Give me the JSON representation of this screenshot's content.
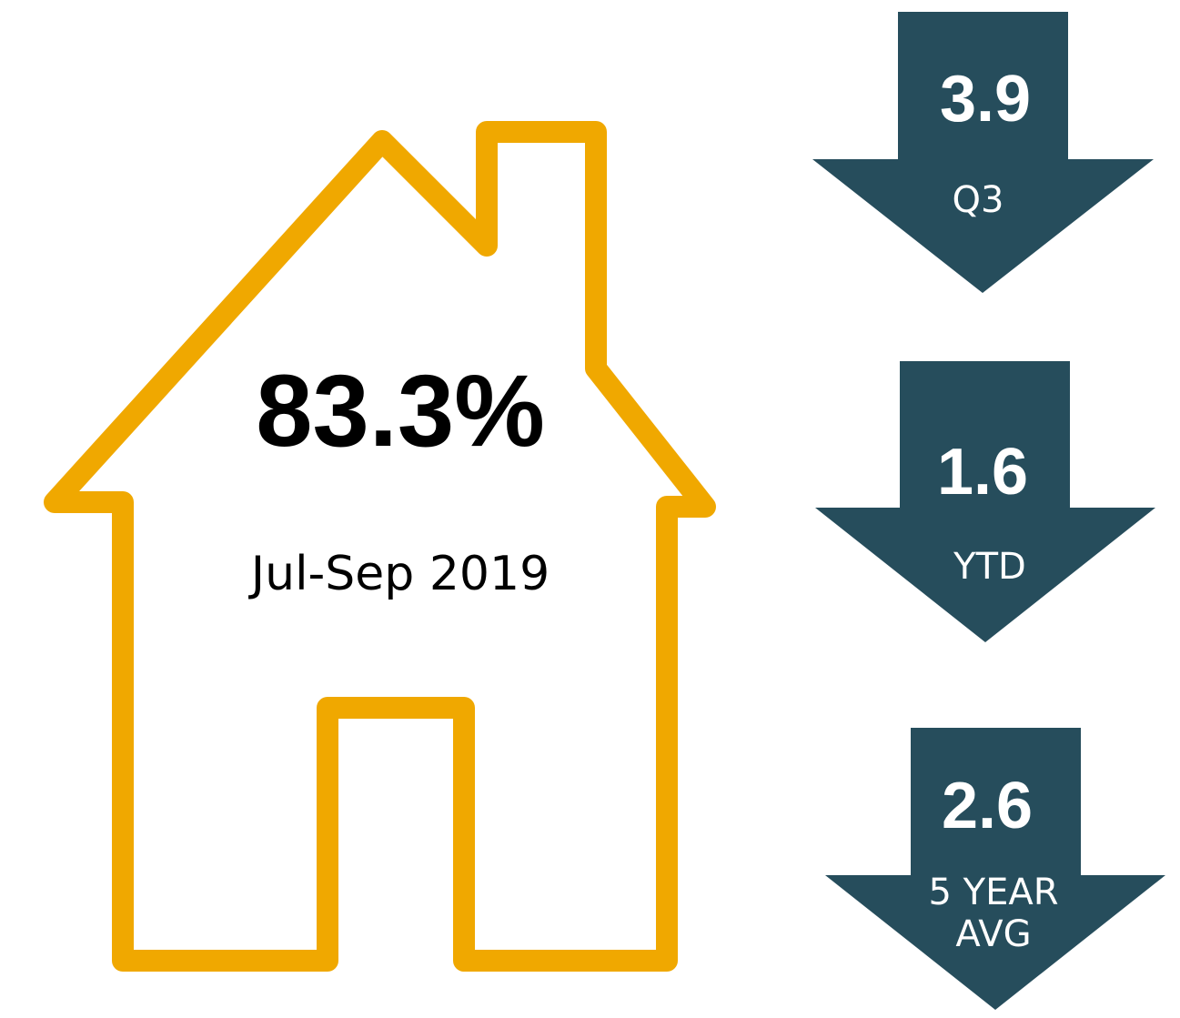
{
  "house": {
    "value": "83.3%",
    "period": "Jul-Sep 2019"
  },
  "arrows": [
    {
      "value": "3.9",
      "label": "Q3"
    },
    {
      "value": "1.6",
      "label": "YTD"
    },
    {
      "value": "2.6",
      "label": "5 YEAR AVG"
    }
  ]
}
